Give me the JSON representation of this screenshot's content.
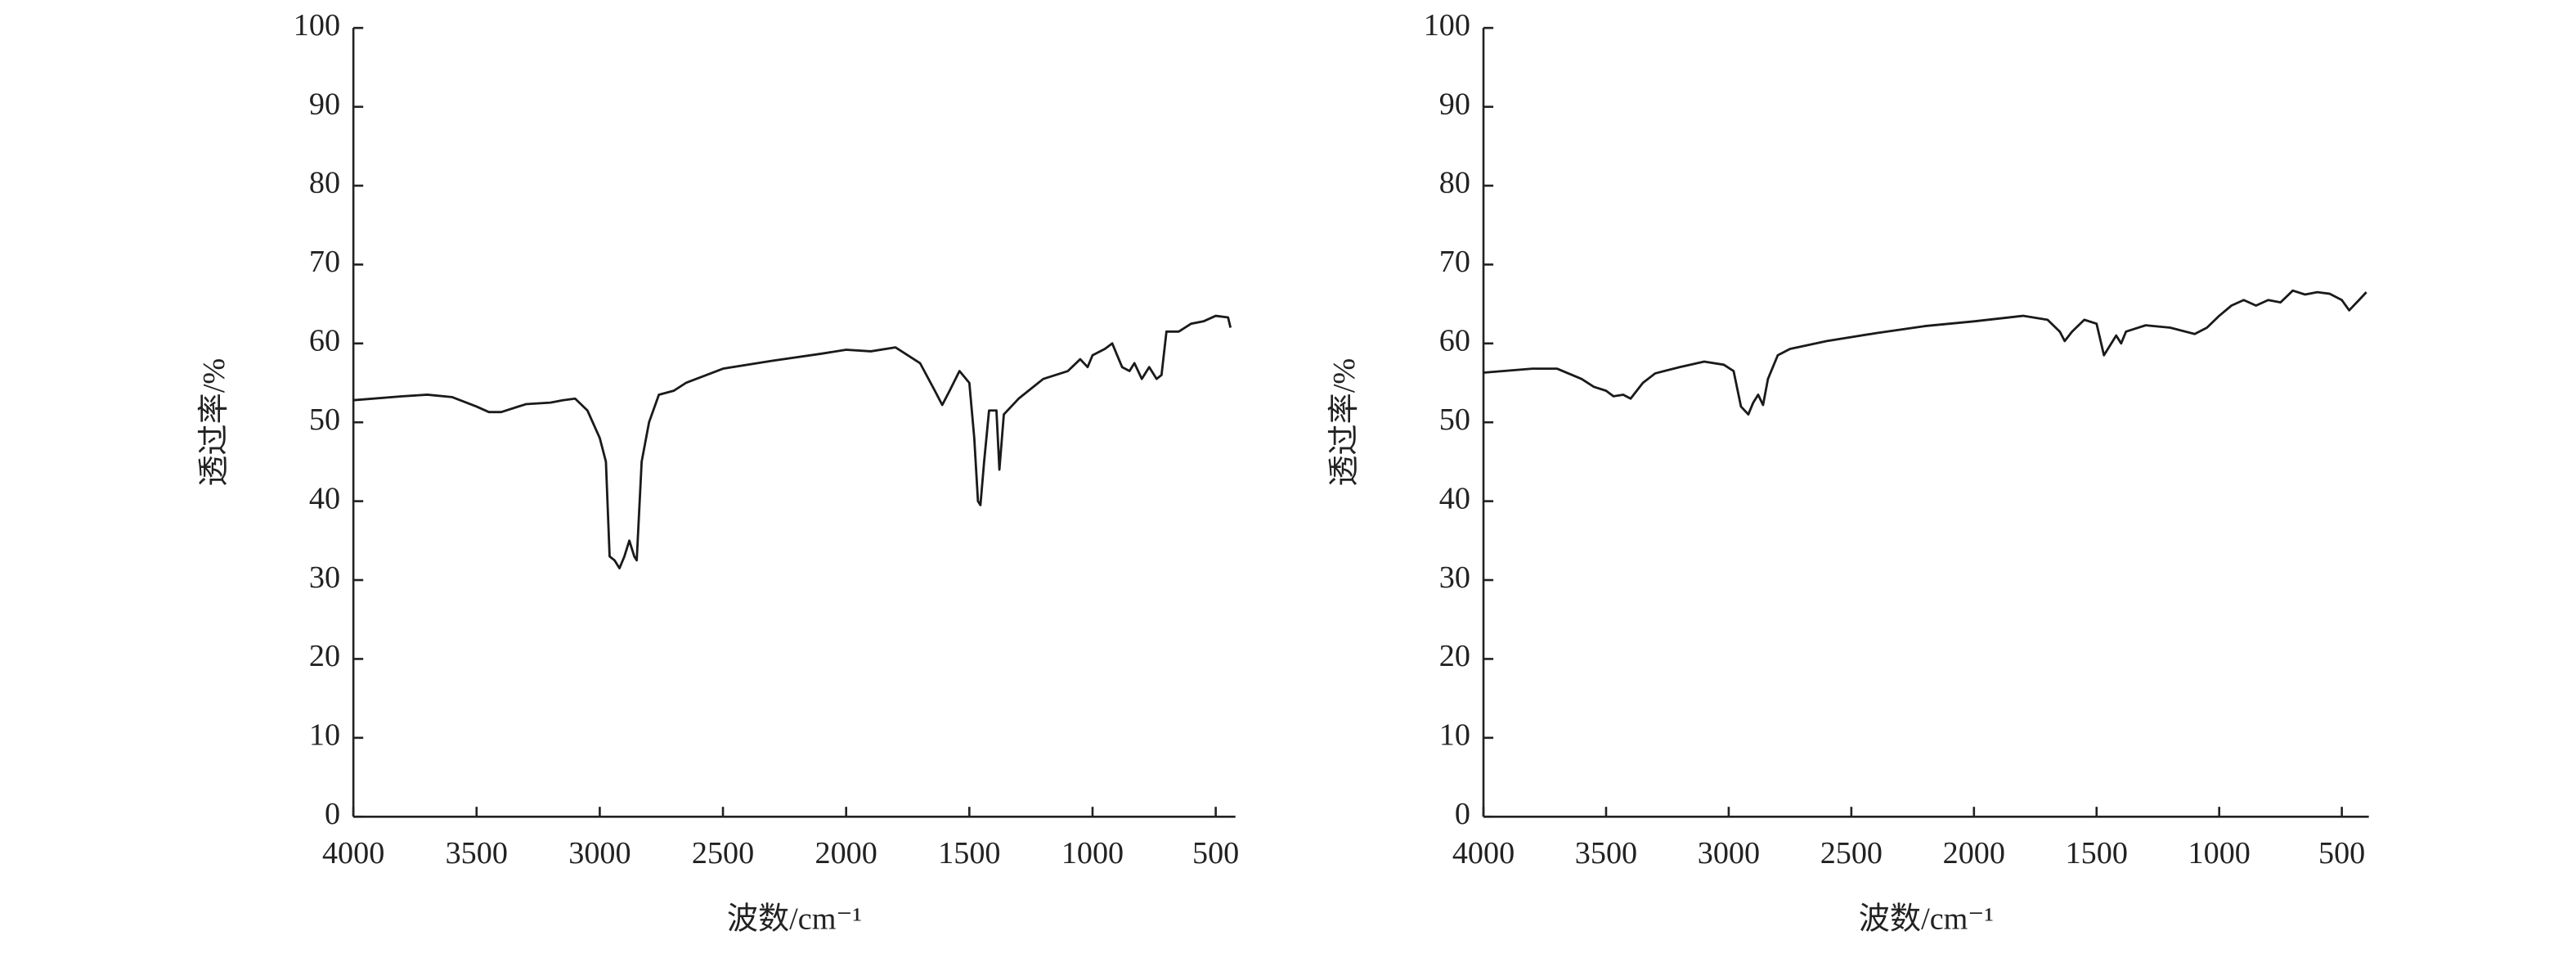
{
  "chart_data": [
    {
      "type": "line",
      "x_label": "波数/cm⁻¹",
      "y_label": "透过率/%",
      "xlim": [
        4000,
        420
      ],
      "ylim": [
        0,
        100
      ],
      "xticks": [
        4000,
        3500,
        3000,
        2500,
        2000,
        1500,
        1000,
        500
      ],
      "yticks": [
        0,
        10,
        20,
        30,
        40,
        50,
        60,
        70,
        80,
        90,
        100
      ],
      "series": [
        {
          "color": "#1a1a1a",
          "x": [
            4000,
            3800,
            3700,
            3600,
            3500,
            3450,
            3400,
            3300,
            3200,
            3150,
            3100,
            3050,
            3000,
            2975,
            2960,
            2940,
            2920,
            2900,
            2880,
            2860,
            2850,
            2830,
            2800,
            2760,
            2700,
            2650,
            2500,
            2300,
            2100,
            2000,
            1900,
            1800,
            1700,
            1640,
            1610,
            1580,
            1540,
            1500,
            1480,
            1465,
            1455,
            1440,
            1420,
            1390,
            1378,
            1360,
            1300,
            1200,
            1100,
            1050,
            1020,
            1000,
            950,
            920,
            880,
            850,
            830,
            800,
            770,
            740,
            720,
            700,
            650,
            600,
            550,
            500,
            450,
            440
          ],
          "values": [
            52.8,
            53.3,
            53.5,
            53.2,
            52.0,
            51.3,
            51.3,
            52.3,
            52.5,
            52.8,
            53.0,
            51.5,
            48,
            45,
            33,
            32.5,
            31.5,
            33,
            35,
            33,
            32.5,
            45,
            50,
            53.5,
            54,
            55,
            56.8,
            57.8,
            58.7,
            59.2,
            59.0,
            59.5,
            57.5,
            54,
            52.2,
            54,
            56.5,
            55,
            48,
            40,
            39.5,
            45,
            51.5,
            51.5,
            44,
            51,
            53,
            55.5,
            56.5,
            58,
            57,
            58.5,
            59.3,
            60,
            57,
            56.5,
            57.5,
            55.5,
            57,
            55.5,
            56,
            61.5,
            61.5,
            62.5,
            62.8,
            63.5,
            63.3,
            62
          ]
        }
      ]
    },
    {
      "type": "line",
      "x_label": "波数/cm⁻¹",
      "y_label": "透过率/%",
      "xlim": [
        4000,
        390
      ],
      "ylim": [
        0,
        100
      ],
      "xticks": [
        4000,
        3500,
        3000,
        2500,
        2000,
        1500,
        1000,
        500
      ],
      "yticks": [
        0,
        10,
        20,
        30,
        40,
        50,
        60,
        70,
        80,
        90,
        100
      ],
      "series": [
        {
          "color": "#1a1a1a",
          "x": [
            4000,
            3800,
            3700,
            3600,
            3550,
            3500,
            3470,
            3430,
            3400,
            3350,
            3300,
            3200,
            3100,
            3020,
            2980,
            2950,
            2920,
            2900,
            2880,
            2860,
            2840,
            2800,
            2750,
            2600,
            2400,
            2200,
            2000,
            1800,
            1700,
            1650,
            1630,
            1600,
            1550,
            1500,
            1470,
            1450,
            1420,
            1400,
            1380,
            1300,
            1200,
            1100,
            1050,
            1000,
            950,
            900,
            850,
            800,
            750,
            700,
            650,
            600,
            550,
            500,
            470,
            430,
            400
          ],
          "values": [
            56.3,
            56.8,
            56.8,
            55.5,
            54.5,
            54.0,
            53.3,
            53.5,
            53,
            55,
            56.2,
            57,
            57.7,
            57.3,
            56.5,
            52,
            51,
            52.5,
            53.5,
            52.2,
            55.5,
            58.5,
            59.3,
            60.3,
            61.3,
            62.2,
            62.8,
            63.5,
            63,
            61.5,
            60.3,
            61.5,
            63,
            62.5,
            58.5,
            59.5,
            61,
            60,
            61.5,
            62.3,
            62,
            61.2,
            62,
            63.5,
            64.8,
            65.5,
            64.8,
            65.5,
            65.2,
            66.7,
            66.2,
            66.5,
            66.3,
            65.5,
            64.2,
            65.5,
            66.5
          ]
        }
      ]
    }
  ]
}
